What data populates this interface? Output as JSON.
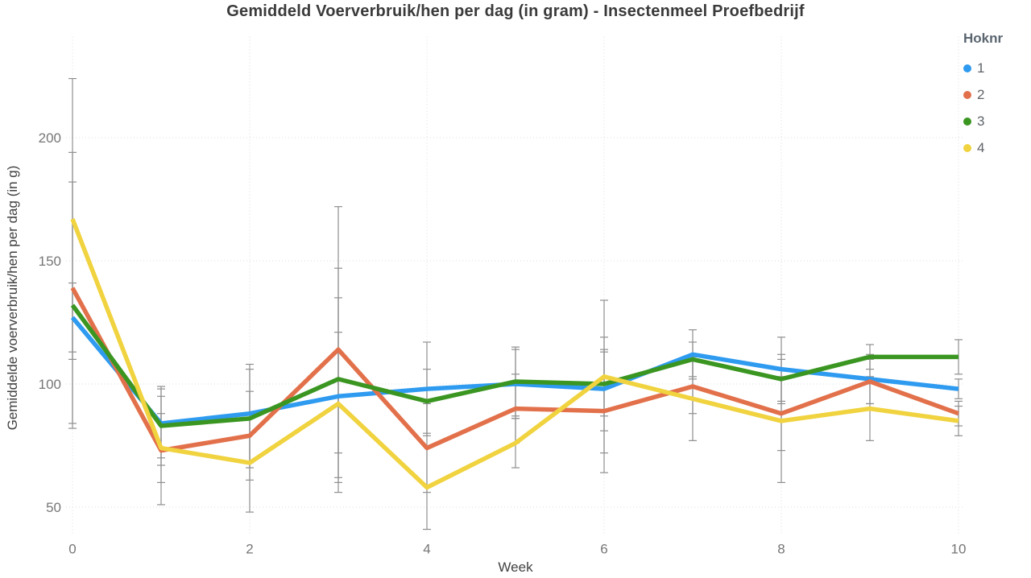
{
  "chart_data": {
    "type": "line",
    "title": "Gemiddeld Voerverbruik/hen per dag (in gram) - Insectenmeel Proefbedrijf",
    "xlabel": "Week",
    "ylabel": "Gemiddelde voerverbruik/hen per dag (in g)",
    "legend_title": "Hoknr",
    "legend_position": "top-right",
    "grid": "dotted",
    "x": [
      0,
      1,
      2,
      3,
      4,
      5,
      6,
      7,
      8,
      9,
      10
    ],
    "xticks": [
      0,
      2,
      4,
      6,
      8,
      10
    ],
    "yticks": [
      50,
      100,
      150,
      200
    ],
    "xlim": [
      0,
      10
    ],
    "ylim": [
      39,
      241
    ],
    "grid_color": "#dcdcdc",
    "error_bar_color": "#8f8f8f",
    "tick_label_color": "#767676",
    "series": [
      {
        "name": "1",
        "color": "#2e9bf0",
        "values": [
          127,
          84,
          88,
          95,
          98,
          100,
          98,
          112,
          106,
          102,
          98
        ],
        "err_lo": [
          113,
          70,
          68,
          72,
          79,
          86,
          81,
          102,
          93,
          92,
          94
        ],
        "err_hi": [
          141,
          98,
          108,
          121,
          117,
          114,
          119,
          122,
          119,
          112,
          102
        ]
      },
      {
        "name": "2",
        "color": "#e2714b",
        "values": [
          139,
          73,
          79,
          114,
          74,
          90,
          89,
          99,
          88,
          101,
          88
        ],
        "err_lo": [
          84,
          51,
          61,
          56,
          56,
          76,
          64,
          88,
          73,
          92,
          83
        ],
        "err_hi": [
          194,
          95,
          97,
          172,
          92,
          104,
          114,
          110,
          103,
          110,
          93
        ]
      },
      {
        "name": "3",
        "color": "#3a9621",
        "values": [
          132,
          83,
          86,
          102,
          93,
          101,
          100,
          110,
          102,
          111,
          111
        ],
        "err_lo": [
          82,
          67,
          66,
          62,
          80,
          87,
          87,
          103,
          92,
          106,
          104
        ],
        "err_hi": [
          182,
          99,
          106,
          147,
          106,
          115,
          113,
          117,
          112,
          116,
          118
        ]
      },
      {
        "name": "4",
        "color": "#f0d33f",
        "values": [
          167,
          74,
          68,
          92,
          58,
          76,
          103,
          94,
          85,
          90,
          85
        ],
        "err_lo": [
          110,
          60,
          48,
          60,
          41,
          66,
          72,
          77,
          60,
          77,
          79
        ],
        "err_hi": [
          224,
          88,
          88,
          135,
          75,
          86,
          134,
          111,
          110,
          103,
          91
        ]
      }
    ]
  }
}
